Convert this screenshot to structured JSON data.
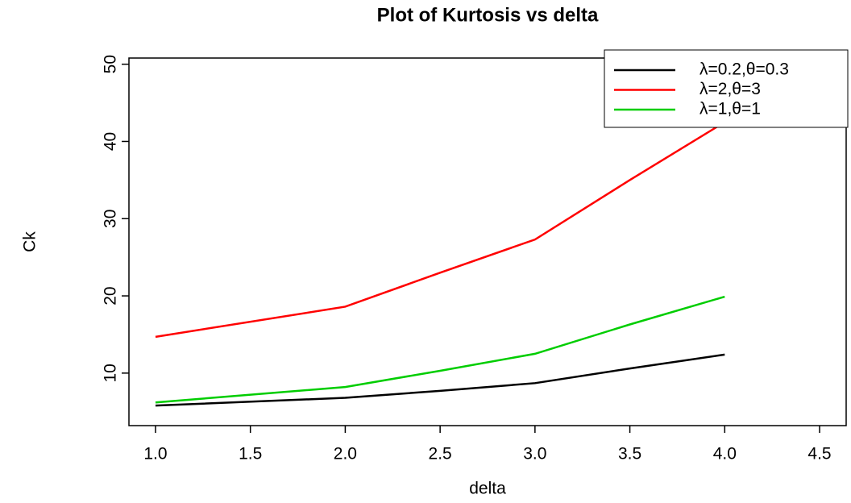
{
  "chart_data": {
    "type": "line",
    "title": "Plot of Kurtosis vs delta",
    "x_label": "delta",
    "y_label": "Ck",
    "x": [
      1,
      2,
      2.5,
      3,
      3.5,
      4
    ],
    "series": [
      {
        "name": "λ=0.2,θ=0.3",
        "color": "#000000",
        "values": [
          5.8,
          6.8,
          7.7,
          8.7,
          10.6,
          12.4
        ]
      },
      {
        "name": "λ=2,θ=3",
        "color": "#ff0000",
        "values": [
          14.7,
          18.6,
          23,
          27.3,
          35,
          42.5
        ]
      },
      {
        "name": "λ=1,θ=1",
        "color": "#00cd00",
        "values": [
          6.2,
          8.2,
          10.3,
          12.5,
          16.3,
          19.9
        ]
      }
    ],
    "xlim": [
      0.86,
      4.64
    ],
    "xticks": [
      {
        "value": 1,
        "label": "1.0"
      },
      1.5,
      {
        "value": 2,
        "label": "2.0"
      },
      2.5,
      {
        "value": 3,
        "label": "3.0"
      },
      3.5,
      {
        "value": 4,
        "label": "4.0"
      },
      4.5
    ],
    "ylim": [
      3.2,
      50.8
    ],
    "yticks": [
      10,
      20,
      30,
      40,
      50
    ],
    "legend": "top-right"
  }
}
